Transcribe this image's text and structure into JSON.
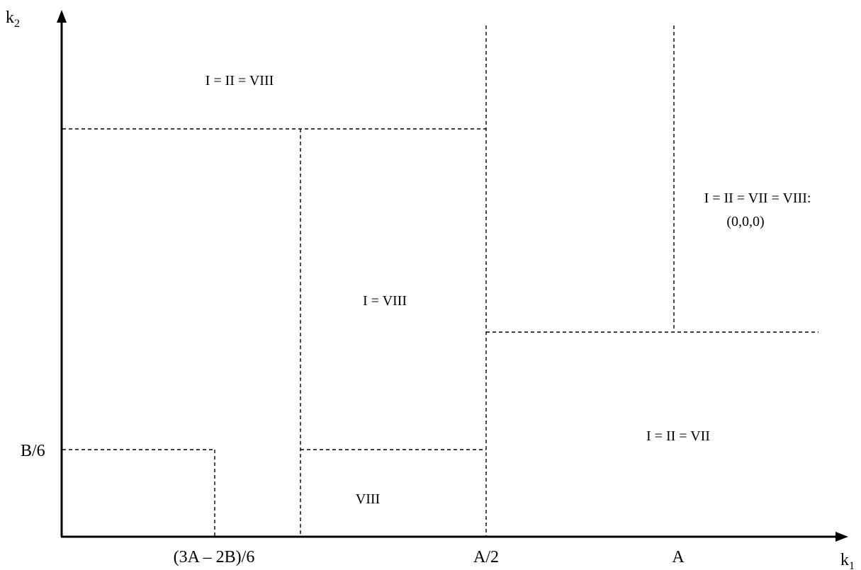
{
  "axes": {
    "x_label_main": "k",
    "x_label_sub": "1",
    "y_label_main": "k",
    "y_label_sub": "2"
  },
  "ticks": {
    "b6": "B/6",
    "x1": "(3A – 2B)/6",
    "x2": "A/2",
    "x3": "A"
  },
  "regions": {
    "top_left": "I = II = VIII",
    "middle": "I = VIII",
    "bottom_middle": "VIII",
    "bottom_right": "I = II = VII",
    "top_right_line1": "I = II = VII = VIII:",
    "top_right_line2": "(0,0,0)"
  }
}
